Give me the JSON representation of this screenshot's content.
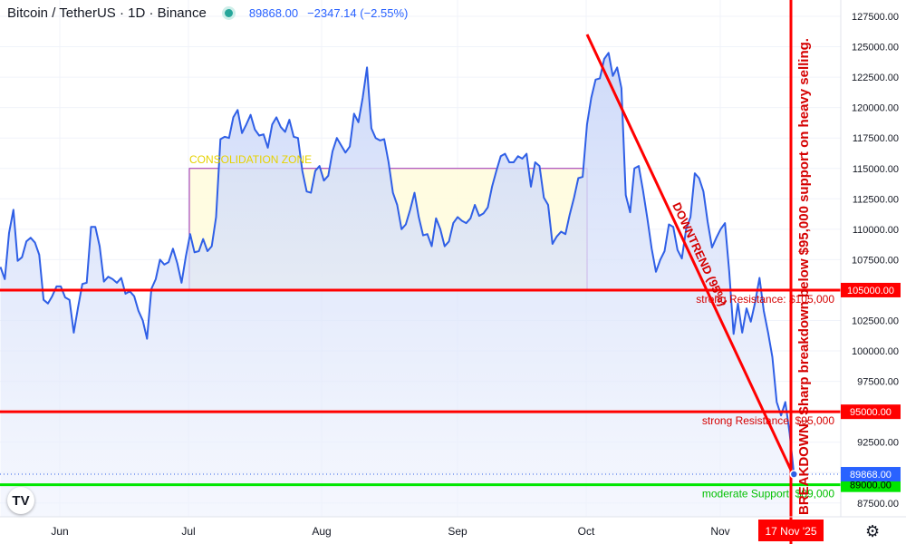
{
  "header": {
    "symbol": "Bitcoin / TetherUS · 1D · Binance",
    "price": "89868.00",
    "change": "−2347.14 (−2.55%)"
  },
  "logo_text": "TV",
  "icons": {
    "settings": "gear-icon",
    "status": "market-open-dot-icon"
  },
  "colors": {
    "line": "#2f5fe6",
    "area": "#dde6fb",
    "level_red": "#ff0000",
    "level_green": "#00e600",
    "zone_fill": "#fffbdc",
    "zone_border": "#9c27b0",
    "annotation_red": "#d50000",
    "zone_text": "#e6d200"
  },
  "chart_data": {
    "type": "area",
    "x_axis": {
      "labels": [
        "Jun",
        "Jul",
        "Aug",
        "Sep",
        "Oct",
        "Nov"
      ],
      "current_date_label": "17 Nov '25"
    },
    "y_axis": {
      "ticks": [
        "127500.00",
        "125000.00",
        "122500.00",
        "120000.00",
        "117500.00",
        "115000.00",
        "112500.00",
        "110000.00",
        "107500.00",
        "105000.00",
        "102500.00",
        "100000.00",
        "97500.00",
        "95000.00",
        "92500.00",
        "90000.00",
        "87500.00"
      ],
      "range": [
        86500,
        128800
      ]
    },
    "series": [
      {
        "start_date": "2025-05-15",
        "values": [
          106900,
          105900,
          109700,
          111600,
          107400,
          107700,
          109000,
          109300,
          108900,
          107900,
          104200,
          103900,
          104500,
          105300,
          105300,
          104400,
          104200,
          101500,
          103600,
          105500,
          105600,
          110200,
          110200,
          108600,
          105700,
          106100,
          105900,
          105600,
          106000,
          104700,
          104900,
          104500,
          103300,
          102500,
          101000,
          105100,
          105900,
          107500,
          107100,
          107300,
          108400,
          107200,
          105600,
          107800,
          109600,
          108100,
          108200,
          109200,
          108200,
          108600,
          111000,
          117400,
          117600,
          117500,
          119200,
          119800,
          117900,
          118600,
          119400,
          118200,
          117700,
          117800,
          116700,
          118600,
          119200,
          118400,
          118000,
          119000,
          117600,
          117500,
          114800,
          113100,
          113000,
          114800,
          115200,
          114000,
          114400,
          116400,
          117500,
          116900,
          116300,
          116800,
          119500,
          118800,
          120800,
          123300,
          118300,
          117500,
          117300,
          117400,
          115500,
          113000,
          112000,
          110000,
          110400,
          111600,
          113000,
          111000,
          109500,
          109600,
          108600,
          110900,
          110000,
          108600,
          109000,
          110500,
          111000,
          110700,
          110500,
          110900,
          112000,
          111100,
          111300,
          111800,
          113500,
          114800,
          116000,
          116200,
          115500,
          115500,
          116000,
          115800,
          116200,
          113500,
          115500,
          115200,
          112600,
          112000,
          108800,
          109400,
          109800,
          109600,
          111200,
          112600,
          114200,
          114300,
          118600,
          120800,
          122300,
          122400,
          124000,
          124500,
          122600,
          123300,
          121600,
          112800,
          111400,
          115000,
          115200,
          113200,
          110900,
          108400,
          106500,
          107500,
          108200,
          110400,
          110200,
          108300,
          107600,
          110000,
          111000,
          114600,
          114200,
          113100,
          110600,
          108500,
          109300,
          110000,
          110500,
          106500,
          101400,
          103900,
          101500,
          103500,
          102400,
          104000,
          106000,
          103300,
          101500,
          99500,
          95800,
          94700,
          95800,
          93200,
          89868
        ]
      }
    ],
    "levels": [
      {
        "value": 105000,
        "label": "strong Resistance: $105,000",
        "tag": "105000.00",
        "color": "red"
      },
      {
        "value": 95000,
        "label": "strong Resistance: $95,000",
        "tag": "95000.00",
        "color": "red"
      },
      {
        "value": 89000,
        "label": "moderate Support: $89,000",
        "tag": "89000.00",
        "color": "green"
      }
    ],
    "current_price_tag": "89868.00",
    "zone": {
      "label": "CONSOLIDATION ZONE",
      "price_top": 115000,
      "price_bottom": 105000
    },
    "trendline": {
      "label": "DOWNTREND (95%)"
    },
    "vertical_annotation": "BREAKDOWN: Sharp breakdown below $95,000 support on heavy selling."
  }
}
